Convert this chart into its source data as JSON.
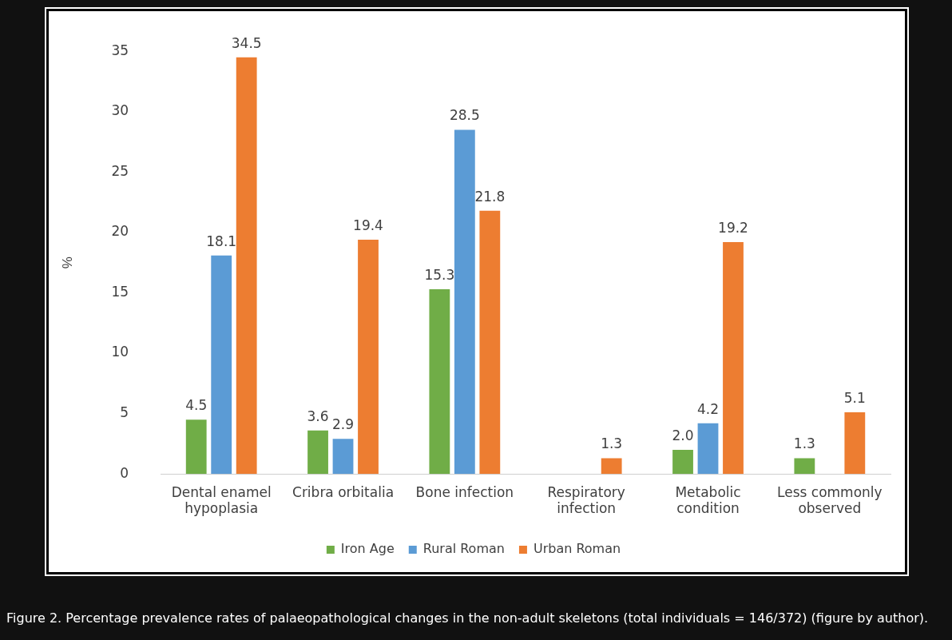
{
  "chart_data": {
    "type": "bar",
    "ylabel": "%",
    "categories": [
      "Dental enamel hypoplasia",
      "Cribra orbitalia",
      "Bone infection",
      "Respiratory infection",
      "Metabolic condition",
      "Less commonly observed"
    ],
    "series": [
      {
        "name": "Iron Age",
        "color": "#70ad47",
        "values": [
          4.5,
          3.6,
          15.3,
          null,
          2.0,
          1.3
        ],
        "value_labels": [
          "4.5",
          "3.6",
          "15.3",
          null,
          "2.0",
          "1.3"
        ]
      },
      {
        "name": "Rural Roman",
        "color": "#5b9bd5",
        "values": [
          18.1,
          2.9,
          28.5,
          null,
          4.2,
          null
        ],
        "value_labels": [
          "18.1",
          "2.9",
          "28.5",
          null,
          "4.2",
          null
        ]
      },
      {
        "name": "Urban Roman",
        "color": "#ed7d31",
        "values": [
          34.5,
          19.4,
          21.8,
          1.3,
          19.2,
          5.1
        ],
        "value_labels": [
          "34.5",
          "19.4",
          "21.8",
          "1.3",
          "19.2",
          "5.1"
        ]
      }
    ],
    "ylim": [
      0,
      35
    ],
    "yticks": [
      0,
      5,
      10,
      15,
      20,
      25,
      30,
      35
    ],
    "grid": false,
    "legend": "bottom",
    "annotations": [
      "Figure 2. Percentage prevalence rates of palaeopathological changes in the non-adult skeletons (total individuals = 146/372) (figure by author)."
    ]
  }
}
